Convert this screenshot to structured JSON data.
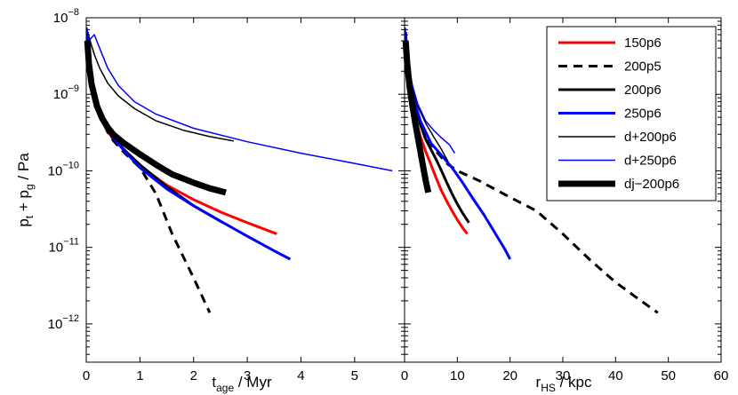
{
  "chart_data": [
    {
      "type": "line",
      "panel": "left",
      "xlabel": "t",
      "xlabel_sub": "age",
      "xlabel_unit": " / Myr",
      "ylabel": "p",
      "ylabel_sub1": "t",
      "ylabel_mid": " + p",
      "ylabel_sub2": "g",
      "ylabel_unit": " / Pa",
      "xlim": [
        0,
        5.93
      ],
      "ylim_log10": [
        -12.5,
        -8
      ],
      "x_ticks": [
        0,
        1,
        2,
        3,
        4,
        5
      ],
      "x_tick_labels": [
        "0",
        "1",
        "2",
        "3",
        "4",
        "5"
      ],
      "y_ticks_log10": [
        -12,
        -11,
        -10,
        -9,
        -8
      ],
      "y_tick_mantissa": "10",
      "y_tick_exponents": [
        "−12",
        "−11",
        "−10",
        "−9",
        "−8"
      ],
      "series": [
        {
          "name": "150p6",
          "color": "#ff0000",
          "width": 3,
          "dash": "",
          "x": [
            0.02,
            0.05,
            0.1,
            0.2,
            0.3,
            0.4,
            0.5,
            0.7,
            1.0,
            1.5,
            2.0,
            2.5,
            3.0,
            3.55
          ],
          "y": [
            4.5e-09,
            2.3e-09,
            1.3e-09,
            7e-10,
            4.6e-10,
            3.3e-10,
            2.6e-10,
            1.9e-10,
            1.15e-10,
            6.5e-11,
            4.2e-11,
            2.9e-11,
            2.1e-11,
            1.5e-11
          ]
        },
        {
          "name": "200p5",
          "color": "#000000",
          "width": 3,
          "dash": "10,7",
          "x": [
            0.02,
            0.05,
            0.1,
            0.2,
            0.3,
            0.4,
            0.5,
            0.7,
            1.0,
            1.3,
            1.6,
            2.0,
            2.3
          ],
          "y": [
            5.5e-09,
            2.5e-09,
            1.4e-09,
            7e-10,
            4.5e-10,
            3.2e-10,
            2.5e-10,
            1.75e-10,
            1.1e-10,
            5e-11,
            1.5e-11,
            4e-12,
            1.4e-12
          ]
        },
        {
          "name": "200p6",
          "color": "#000000",
          "width": 3,
          "dash": "",
          "x": [
            0.02,
            0.05,
            0.1,
            0.2,
            0.3,
            0.4,
            0.5,
            0.7,
            1.0,
            1.5,
            2.0,
            2.55
          ],
          "y": [
            5.5e-09,
            2.6e-09,
            1.5e-09,
            7.5e-10,
            4.8e-10,
            3.5e-10,
            2.7e-10,
            1.9e-10,
            1.2e-10,
            6.2e-11,
            3.5e-11,
            2.1e-11
          ]
        },
        {
          "name": "250p6",
          "color": "#0000ff",
          "width": 3,
          "dash": "",
          "x": [
            0.02,
            0.05,
            0.1,
            0.2,
            0.3,
            0.4,
            0.5,
            0.7,
            1.0,
            1.5,
            2.0,
            2.5,
            3.0,
            3.5,
            3.8
          ],
          "y": [
            6.5e-09,
            3e-09,
            1.6e-09,
            8e-10,
            5e-10,
            3.5e-10,
            2.7e-10,
            1.85e-10,
            1.1e-10,
            5.8e-11,
            3.5e-11,
            2.2e-11,
            1.4e-11,
            9e-12,
            7e-12
          ]
        },
        {
          "name": "d+200p6",
          "color": "#000000",
          "width": 1.5,
          "dash": "",
          "x": [
            0.01,
            0.04,
            0.08,
            0.15,
            0.25,
            0.4,
            0.6,
            0.9,
            1.3,
            1.8,
            2.3,
            2.75
          ],
          "y": [
            7e-09,
            6e-09,
            4.8e-09,
            3.3e-09,
            2.2e-09,
            1.4e-09,
            9.5e-10,
            6.5e-10,
            4.5e-10,
            3.4e-10,
            2.8e-10,
            2.45e-10
          ]
        },
        {
          "name": "d+250p6",
          "color": "#0000ff",
          "width": 1.5,
          "dash": "",
          "x": [
            0.01,
            0.05,
            0.1,
            0.15,
            0.25,
            0.4,
            0.6,
            0.9,
            1.3,
            2.0,
            3.0,
            4.0,
            5.0,
            5.7
          ],
          "y": [
            7.5e-09,
            5e-09,
            5.5e-09,
            6e-09,
            4e-09,
            2.2e-09,
            1.3e-09,
            8e-10,
            5.5e-10,
            3.6e-10,
            2.4e-10,
            1.7e-10,
            1.25e-10,
            1e-10
          ]
        },
        {
          "name": "dj−200p6",
          "color": "#000000",
          "width": 7,
          "dash": "",
          "x": [
            0.02,
            0.05,
            0.1,
            0.2,
            0.3,
            0.4,
            0.5,
            0.7,
            1.0,
            1.3,
            1.6,
            2.0,
            2.3,
            2.6
          ],
          "y": [
            5e-09,
            2.5e-09,
            1.35e-09,
            7e-10,
            4.8e-10,
            3.7e-10,
            3e-10,
            2.3e-10,
            1.65e-10,
            1.2e-10,
            9e-11,
            7e-11,
            5.9e-11,
            5.2e-11
          ]
        }
      ]
    },
    {
      "type": "line",
      "panel": "right",
      "xlabel": "r",
      "xlabel_sub": "HS",
      "xlabel_unit": " / kpc",
      "xlim": [
        0,
        60
      ],
      "ylim_log10": [
        -12.5,
        -8
      ],
      "x_ticks": [
        0,
        10,
        20,
        30,
        40,
        50,
        60
      ],
      "x_tick_labels": [
        "0",
        "10",
        "20",
        "30",
        "40",
        "50",
        "60"
      ],
      "series": [
        {
          "name": "150p6",
          "color": "#ff0000",
          "width": 3,
          "dash": "",
          "x": [
            0.2,
            0.5,
            1.0,
            2.0,
            3.0,
            4.0,
            5.0,
            6.0,
            7.0,
            8.0,
            9.0,
            10.0,
            11.0,
            11.9
          ],
          "y": [
            4.5e-09,
            2.3e-09,
            1.1e-09,
            5e-10,
            2.8e-10,
            1.8e-10,
            1.2e-10,
            8e-11,
            5.5e-11,
            4e-11,
            3e-11,
            2.3e-11,
            1.8e-11,
            1.5e-11
          ]
        },
        {
          "name": "200p5",
          "color": "#000000",
          "width": 3,
          "dash": "10,7",
          "x": [
            0.2,
            0.5,
            1.0,
            2.0,
            3.0,
            4.0,
            6.0,
            8.0,
            10.0,
            14.0,
            20.0,
            25.0,
            30.0,
            35.0,
            40.0,
            44.0,
            48.0
          ],
          "y": [
            5.5e-09,
            2.5e-09,
            1.2e-09,
            6e-10,
            4e-10,
            2.8e-10,
            1.8e-10,
            1.25e-10,
            1e-10,
            7.5e-11,
            4.5e-11,
            3e-11,
            1.5e-11,
            7e-12,
            3.5e-12,
            2.2e-12,
            1.4e-12
          ]
        },
        {
          "name": "200p6",
          "color": "#000000",
          "width": 3,
          "dash": "",
          "x": [
            0.2,
            0.5,
            1.0,
            2.0,
            3.0,
            4.0,
            5.0,
            6.0,
            7.0,
            8.0,
            9.0,
            10.0,
            11.0,
            12.2
          ],
          "y": [
            5.5e-09,
            2.6e-09,
            1.4e-09,
            7e-10,
            4e-10,
            2.6e-10,
            1.9e-10,
            1.4e-10,
            1e-10,
            7e-11,
            5e-11,
            3.7e-11,
            2.8e-11,
            2.1e-11
          ]
        },
        {
          "name": "250p6",
          "color": "#0000ff",
          "width": 3,
          "dash": "",
          "x": [
            0.2,
            0.5,
            1.0,
            2.0,
            3.0,
            5.0,
            7.0,
            9.0,
            11.0,
            13.0,
            15.0,
            17.0,
            19.0,
            20.0
          ],
          "y": [
            6.5e-09,
            3e-09,
            1.5e-09,
            7.5e-10,
            4.5e-10,
            2.3e-10,
            1.6e-10,
            1.1e-10,
            7e-11,
            4.3e-11,
            2.7e-11,
            1.6e-11,
            9.5e-12,
            7e-12
          ]
        },
        {
          "name": "d+200p6",
          "color": "#000000",
          "width": 1.5,
          "dash": "",
          "x": [
            0.1,
            0.3,
            0.6,
            1.0,
            1.5,
            2.5,
            4.0,
            5.5,
            7.0,
            8.3
          ],
          "y": [
            7e-09,
            4.5e-09,
            2.8e-09,
            1.8e-09,
            1.2e-09,
            7e-10,
            4.2e-10,
            2.8e-10,
            1.9e-10,
            1.3e-10
          ]
        },
        {
          "name": "d+250p6",
          "color": "#0000ff",
          "width": 1.5,
          "dash": "",
          "x": [
            0.1,
            0.3,
            0.6,
            1.0,
            1.5,
            2.5,
            4.0,
            5.5,
            7.0,
            8.5,
            9.5
          ],
          "y": [
            7.5e-09,
            5.5e-09,
            3.3e-09,
            2e-09,
            1.3e-09,
            7.5e-10,
            4.5e-10,
            3.4e-10,
            2.7e-10,
            2.2e-10,
            1.7e-10
          ]
        },
        {
          "name": "dj−200p6",
          "color": "#000000",
          "width": 7,
          "dash": "",
          "x": [
            0.2,
            0.5,
            1.0,
            1.5,
            2.0,
            2.5,
            3.0,
            3.5,
            4.0,
            4.5
          ],
          "y": [
            5e-09,
            2.5e-09,
            1.2e-09,
            7e-10,
            4.3e-10,
            2.8e-10,
            1.8e-10,
            1.15e-10,
            7.5e-11,
            5.2e-11
          ]
        }
      ],
      "legend": {
        "placement": "top-right",
        "entries": [
          "150p6",
          "200p5",
          "200p6",
          "250p6",
          "d+200p6",
          "d+250p6",
          "dj−200p6"
        ]
      }
    }
  ]
}
